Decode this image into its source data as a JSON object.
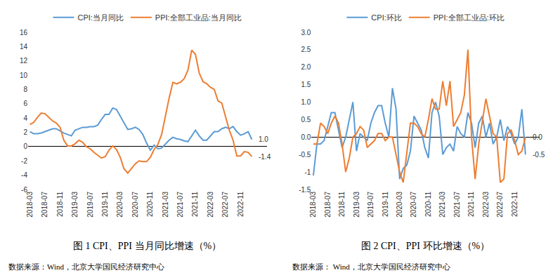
{
  "chart_data": [
    {
      "type": "line",
      "title": "图 1 CPI、PPI 当月同比增速（%）",
      "source": "数据来源：Wind，北京大学国民经济研究中心",
      "categories": [
        "2018-03",
        null,
        null,
        null,
        "2018-07",
        null,
        null,
        null,
        "2018-11",
        null,
        null,
        null,
        "2019-03",
        null,
        null,
        null,
        "2019-07",
        null,
        null,
        null,
        "2019-11",
        null,
        null,
        null,
        "2020-03",
        null,
        null,
        null,
        "2020-07",
        null,
        null,
        null,
        "2020-11",
        null,
        null,
        null,
        "2021-03",
        null,
        null,
        null,
        "2021-07",
        null,
        null,
        null,
        "2021-11",
        null,
        null,
        null,
        "2022-03",
        null,
        null,
        null,
        "2022-07",
        null,
        null,
        null,
        "2022-11",
        null,
        null,
        null
      ],
      "series": [
        {
          "name": "CPI:当月同比",
          "color": "#5B9BD5",
          "end_label": "1.0",
          "values": [
            2.1,
            1.8,
            1.8,
            1.9,
            2.1,
            2.3,
            2.5,
            2.5,
            2.2,
            1.9,
            1.7,
            1.5,
            2.3,
            2.5,
            2.7,
            2.7,
            2.8,
            2.8,
            3.0,
            3.8,
            4.5,
            4.5,
            5.4,
            5.2,
            4.3,
            3.3,
            2.4,
            2.5,
            2.7,
            2.4,
            1.7,
            0.5,
            -0.5,
            0.2,
            -0.3,
            -0.2,
            0.4,
            0.9,
            1.3,
            1.1,
            1.0,
            0.8,
            0.7,
            1.5,
            2.3,
            1.5,
            0.9,
            0.9,
            1.5,
            2.1,
            2.1,
            2.5,
            2.7,
            2.5,
            2.8,
            2.1,
            1.6,
            1.8,
            2.1,
            1.0
          ]
        },
        {
          "name": "PPI:全部工业品:当月同比",
          "color": "#ED7D31",
          "end_label": "-1.4",
          "values": [
            3.1,
            3.4,
            4.1,
            4.7,
            4.6,
            4.1,
            3.6,
            3.3,
            2.7,
            0.9,
            0.1,
            0.1,
            0.4,
            0.9,
            0.6,
            0.0,
            -0.3,
            -0.8,
            -1.2,
            -1.6,
            -1.4,
            -0.5,
            0.1,
            -0.4,
            -1.5,
            -3.1,
            -3.7,
            -3.0,
            -2.4,
            -2.0,
            -2.1,
            -2.1,
            -1.5,
            -0.4,
            0.3,
            1.7,
            4.4,
            6.8,
            9.0,
            8.8,
            9.0,
            9.5,
            10.7,
            13.5,
            12.9,
            10.3,
            9.1,
            8.8,
            8.3,
            8.0,
            6.4,
            6.1,
            4.2,
            2.3,
            0.9,
            -1.3,
            -1.3,
            -0.7,
            -0.8,
            -1.4
          ]
        }
      ],
      "ylim": [
        -6,
        16
      ],
      "yticks": [
        -6,
        -4,
        -2,
        0,
        2,
        4,
        6,
        8,
        10,
        12,
        14,
        16
      ],
      "grid": false,
      "legend": "top"
    },
    {
      "type": "line",
      "title": "图 2 CPI、PPI 环比增速（%）",
      "source": "数据来源： Wind，北京大学国民经济研究中心",
      "categories": [
        "2018-03",
        null,
        null,
        null,
        "2018-07",
        null,
        null,
        null,
        "2018-11",
        null,
        null,
        null,
        "2019-03",
        null,
        null,
        null,
        "2019-07",
        null,
        null,
        null,
        "2019-11",
        null,
        null,
        null,
        "2020-03",
        null,
        null,
        null,
        "2020-07",
        null,
        null,
        null,
        "2020-11",
        null,
        null,
        null,
        "2021-03",
        null,
        null,
        null,
        "2021-07",
        null,
        null,
        null,
        "2021-11",
        null,
        null,
        null,
        "2022-03",
        null,
        null,
        null,
        "2022-07",
        null,
        null,
        null,
        "2022-11",
        null,
        null,
        null
      ],
      "series": [
        {
          "name": "CPI:环比",
          "color": "#5B9BD5",
          "end_label": "-0.5",
          "values": [
            -1.1,
            -0.2,
            -0.2,
            -0.1,
            0.3,
            0.7,
            0.7,
            0.2,
            -0.3,
            0.0,
            0.5,
            1.0,
            -0.4,
            0.1,
            0.0,
            -0.1,
            0.4,
            0.7,
            0.9,
            0.9,
            0.4,
            0.0,
            1.4,
            0.8,
            -1.2,
            -0.9,
            -0.8,
            -0.4,
            0.6,
            0.4,
            0.2,
            -0.3,
            -0.6,
            0.7,
            1.0,
            0.6,
            -0.5,
            -0.3,
            -0.2,
            -0.4,
            0.3,
            0.1,
            0.0,
            0.7,
            0.4,
            -0.3,
            0.4,
            0.6,
            0.0,
            0.4,
            -0.2,
            0.0,
            0.5,
            -0.1,
            0.3,
            0.1,
            -0.2,
            0.0,
            0.8,
            -0.5
          ]
        },
        {
          "name": "PPI:全部工业品:环比",
          "color": "#ED7D31",
          "end_label": "0.0",
          "values": [
            -0.2,
            -0.2,
            0.4,
            0.3,
            0.1,
            0.4,
            0.6,
            0.4,
            -0.2,
            -1.0,
            -0.6,
            0.0,
            0.1,
            0.3,
            0.2,
            -0.3,
            -0.2,
            -0.1,
            0.1,
            0.1,
            -0.1,
            0.0,
            0.0,
            -0.5,
            -1.0,
            -1.3,
            -0.4,
            0.4,
            0.4,
            0.3,
            0.1,
            0.0,
            0.5,
            1.1,
            0.8,
            0.8,
            1.6,
            0.9,
            1.6,
            0.3,
            0.5,
            0.7,
            1.2,
            2.5,
            0.0,
            -1.2,
            -0.2,
            0.5,
            1.1,
            0.6,
            0.1,
            0.0,
            -1.3,
            -1.2,
            0.1,
            0.2,
            -0.1,
            -0.5,
            -0.4,
            0.0
          ]
        }
      ],
      "ylim": [
        -1.5,
        3.0
      ],
      "yticks": [
        -1.5,
        -1,
        -0.5,
        {
          "value": 0,
          "label": "0.0"
        },
        0.5,
        {
          "value": 1,
          "label": "1.0"
        },
        1.5,
        {
          "value": 2,
          "label": "2.0"
        },
        2.5,
        {
          "value": 3,
          "label": "3.0"
        }
      ],
      "grid": false,
      "legend": "top"
    }
  ]
}
